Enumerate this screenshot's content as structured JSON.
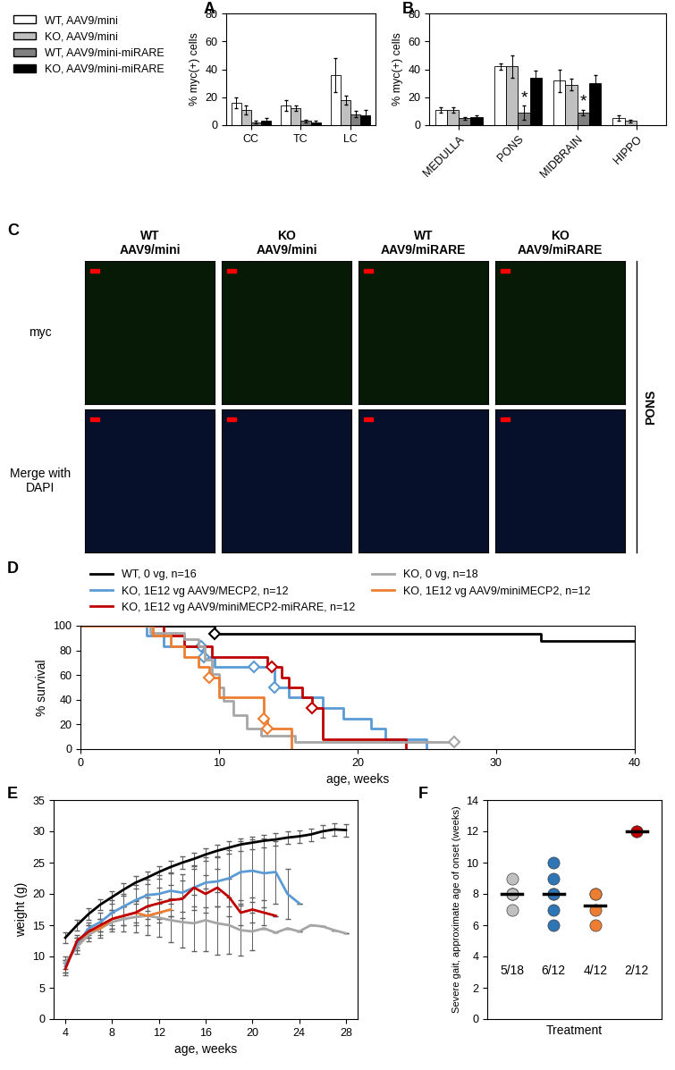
{
  "chart_data": [
    {
      "type": "bar",
      "title": "A",
      "ylabel": "% myc(+) cells",
      "legend": "upper left",
      "categories": [
        "CC",
        "TC",
        "LC"
      ],
      "ylim": [
        0,
        80
      ],
      "yticks": [
        0,
        20,
        40,
        60,
        80
      ],
      "series": [
        {
          "name": "WT, AAV9/mini",
          "color": "#ffffff",
          "values": [
            16,
            14,
            36
          ],
          "errors": [
            4,
            4,
            12
          ]
        },
        {
          "name": "KO, AAV9/mini",
          "color": "#c0c0c0",
          "values": [
            11,
            12,
            18
          ],
          "errors": [
            3,
            2,
            3
          ]
        },
        {
          "name": "WT, AAV9/mini-miRARE",
          "color": "#808080",
          "values": [
            2,
            3,
            8
          ],
          "errors": [
            1,
            1,
            2
          ]
        },
        {
          "name": "KO, AAV9/mini-miRARE",
          "color": "#000000",
          "values": [
            3,
            2,
            7
          ],
          "errors": [
            2,
            1,
            4
          ]
        }
      ]
    },
    {
      "type": "bar",
      "title": "B",
      "ylabel": "% myc(+) cells",
      "categories": [
        "MEDULLA",
        "PONS",
        "MIDBRAIN",
        "HIPPO"
      ],
      "ylim": [
        0,
        80
      ],
      "yticks": [
        0,
        20,
        40,
        60,
        80
      ],
      "series": [
        {
          "name": "WT, AAV9/mini",
          "color": "#ffffff",
          "values": [
            11,
            42,
            32,
            5
          ],
          "errors": [
            2,
            2,
            8,
            2
          ]
        },
        {
          "name": "KO, AAV9/mini",
          "color": "#c0c0c0",
          "values": [
            11,
            42,
            29,
            3
          ],
          "errors": [
            2,
            8,
            4,
            1
          ]
        },
        {
          "name": "WT, AAV9/mini-miRARE",
          "color": "#808080",
          "values": [
            5,
            9,
            9,
            null
          ],
          "errors": [
            1,
            5,
            2,
            null
          ]
        },
        {
          "name": "KO, AAV9/mini-miRARE",
          "color": "#000000",
          "values": [
            6,
            34,
            30,
            null
          ],
          "errors": [
            1,
            5,
            6,
            null
          ]
        }
      ],
      "annotations": [
        {
          "text": "*",
          "category": "PONS",
          "series": "WT, AAV9/mini-miRARE"
        },
        {
          "text": "*",
          "category": "MIDBRAIN",
          "series": "WT, AAV9/mini-miRARE"
        }
      ]
    },
    {
      "type": "image_grid",
      "title": "C",
      "columns": [
        "WT\nAAV9/mini",
        "KO\nAAV9/mini",
        "WT\nAAV9/miRARE",
        "KO\nAAV9/miRARE"
      ],
      "rows": [
        "myc",
        "Merge with DAPI"
      ],
      "region": "PONS"
    },
    {
      "type": "step",
      "title": "D",
      "ylabel": "% survival",
      "xlabel": "age, weeks",
      "legend": "upper left",
      "marker": "diamond",
      "xlim": [
        0,
        40
      ],
      "xticks": [
        0,
        10,
        20,
        30,
        40
      ],
      "ylim": [
        0,
        100
      ],
      "yticks": [
        0,
        20,
        40,
        60,
        80,
        100
      ],
      "series": [
        {
          "name": "WT, 0 vg, n=16",
          "color": "#000000",
          "x": [
            0,
            9.7,
            33.2,
            40
          ],
          "values": [
            100,
            93.75,
            87.5,
            87.5
          ],
          "censored": {
            "x": [
              9.7
            ],
            "values": [
              93.75
            ]
          }
        },
        {
          "name": "KO, 1E12 vg AAV9/MECP2, n=12",
          "color": "#5b9bd5",
          "x": [
            0,
            4.8,
            6,
            8.8,
            9.7,
            14,
            15,
            17.5,
            19,
            21,
            22,
            25
          ],
          "values": [
            100,
            91.7,
            83.3,
            75,
            66.7,
            50,
            41.7,
            33.3,
            25,
            16.7,
            8.3,
            0
          ],
          "censored": {
            "x": [
              8.7,
              8.9,
              12.5,
              14
            ],
            "values": [
              83.3,
              75,
              66.7,
              50
            ]
          }
        },
        {
          "name": "KO, 1E12 vg AAV9/miniMECP2-miRARE, n=12",
          "color": "#c00000",
          "x": [
            0,
            6,
            7.5,
            9.5,
            13.5,
            14.5,
            15,
            16,
            16.7,
            17.5,
            23.5
          ],
          "values": [
            100,
            91.7,
            83.3,
            75,
            66.7,
            58.3,
            50,
            41.7,
            33.3,
            8.3,
            0
          ],
          "censored": {
            "x": [
              13.8,
              16.7
            ],
            "values": [
              66.7,
              33.3
            ]
          }
        },
        {
          "name": "KO, 0 vg, n=18",
          "color": "#a6a6a6",
          "x": [
            0,
            5,
            7.5,
            8.5,
            9,
            9.5,
            10,
            10.3,
            11,
            12,
            13,
            15.5,
            27
          ],
          "values": [
            100,
            94.4,
            88.9,
            83.3,
            72.2,
            61.1,
            50,
            38.9,
            27.8,
            16.7,
            11.1,
            5.6,
            5.6
          ],
          "censored": {
            "x": [
              27
            ],
            "values": [
              5.6
            ]
          }
        },
        {
          "name": "KO, 1E12 vg AAV9/miniMECP2, n=12",
          "color": "#ed7d31",
          "x": [
            0,
            5.2,
            6.5,
            7.5,
            8.5,
            9.3,
            10,
            13.2,
            13.5,
            15.2
          ],
          "values": [
            100,
            91.7,
            83.3,
            75,
            66.7,
            58.3,
            41.7,
            25,
            16.7,
            0
          ],
          "censored": {
            "x": [
              9.3,
              13.2,
              13.5
            ],
            "values": [
              58.3,
              25,
              16.7
            ]
          }
        }
      ]
    },
    {
      "type": "line",
      "title": "E",
      "ylabel": "weight (g)",
      "xlabel": "age, weeks",
      "xlim": [
        3,
        29
      ],
      "xticks": [
        4,
        8,
        12,
        16,
        20,
        24,
        28
      ],
      "ylim": [
        0,
        35
      ],
      "yticks": [
        0,
        5,
        10,
        15,
        20,
        25,
        30,
        35
      ],
      "series": [
        {
          "color": "#a6a6a6",
          "x": [
            4,
            5,
            6,
            7,
            8,
            9,
            10,
            11,
            12,
            13,
            14,
            15,
            16,
            17,
            18,
            19,
            20,
            21,
            22,
            23,
            24,
            25,
            26,
            27,
            28
          ],
          "values": [
            9,
            11.5,
            13.5,
            14.5,
            15.5,
            16,
            16.3,
            16.5,
            16.2,
            15.8,
            15.5,
            15.3,
            15.8,
            15.3,
            15,
            14.2,
            14,
            14.5,
            13.8,
            14.5,
            14,
            15,
            14.8,
            14.2,
            13.7
          ],
          "errors": [
            1,
            1,
            1,
            1.5,
            1.5,
            2,
            2.5,
            3,
            3,
            3.5,
            4,
            4.5,
            5,
            5,
            4.5,
            4,
            3,
            0,
            0,
            0,
            0,
            0,
            0,
            0,
            0
          ]
        },
        {
          "color": "#ed7d31",
          "x": [
            4,
            5,
            6,
            7,
            8,
            9,
            10,
            11,
            12,
            13
          ],
          "values": [
            8.5,
            12,
            14,
            14.5,
            16,
            16.5,
            17,
            16.5,
            17,
            17.5
          ],
          "errors": [
            1,
            1,
            1,
            1,
            1.5,
            1.5,
            1.5,
            1.5,
            1.5,
            1
          ]
        },
        {
          "color": "#5b9bd5",
          "x": [
            4,
            5,
            6,
            7,
            8,
            9,
            10,
            11,
            12,
            13,
            14,
            15,
            16,
            17,
            18,
            19,
            20,
            21,
            22,
            23,
            24
          ],
          "values": [
            8.5,
            12,
            14.5,
            15.5,
            17,
            18,
            19,
            19.8,
            20,
            20.5,
            20.2,
            21,
            21.8,
            22,
            22.5,
            23.5,
            23.7,
            23.3,
            23.5,
            20,
            18.5
          ],
          "errors": [
            1,
            1,
            1,
            1.5,
            2,
            2,
            2.5,
            2.5,
            3,
            3,
            3,
            3.5,
            4,
            4,
            4.5,
            5,
            5,
            5.5,
            5,
            4,
            0
          ]
        },
        {
          "color": "#c00000",
          "x": [
            4,
            5,
            6,
            7,
            8,
            9,
            10,
            11,
            12,
            13,
            14,
            15,
            16,
            17,
            18,
            19,
            20,
            21,
            22
          ],
          "values": [
            8,
            12.5,
            14,
            15,
            16,
            16.5,
            17,
            18,
            18.5,
            19,
            19.2,
            21,
            20,
            21,
            19.5,
            17,
            17.5,
            17,
            16.5
          ],
          "errors": [
            1,
            1,
            1,
            1,
            1.5,
            1.5,
            2,
            2,
            2.5,
            2.5,
            3,
            3,
            3,
            3,
            3,
            2,
            2,
            2,
            0
          ]
        },
        {
          "color": "#000000",
          "x": [
            4,
            5,
            6,
            7,
            8,
            9,
            10,
            11,
            12,
            13,
            14,
            15,
            16,
            17,
            18,
            19,
            20,
            21,
            22,
            23,
            24,
            25,
            26,
            27,
            28
          ],
          "values": [
            13,
            15,
            16.8,
            18.3,
            19.5,
            20.7,
            21.8,
            22.6,
            23.5,
            24.3,
            25,
            25.6,
            26.3,
            26.9,
            27.4,
            27.9,
            28.2,
            28.5,
            28.7,
            29,
            29.2,
            29.5,
            30,
            30.3,
            30.2
          ],
          "errors": [
            0.8,
            0.9,
            0.9,
            0.9,
            1,
            1,
            1,
            1,
            1,
            1,
            1,
            1,
            1,
            1,
            1,
            1,
            1,
            1,
            1,
            1,
            1,
            1,
            1,
            1,
            1
          ]
        }
      ]
    },
    {
      "type": "scatter",
      "title": "F",
      "ylabel": "Severe gait, approximate age of onset (weeks)",
      "xlabel": "Treatment",
      "tick_labels": "y",
      "categories": [
        null,
        null,
        null,
        null
      ],
      "ylim": [
        0,
        14
      ],
      "yticks": [
        0,
        2,
        4,
        6,
        8,
        10,
        12,
        14
      ],
      "colors": [
        "#c0c0c0",
        "#2e75b6",
        "#ed7d31",
        "#c00000"
      ],
      "values": [
        [
          7,
          8,
          8,
          8,
          9
        ],
        [
          6,
          7,
          8,
          8,
          9,
          10
        ],
        [
          6,
          7,
          8,
          8
        ],
        [
          12,
          12
        ]
      ],
      "means": [
        8,
        8,
        7.25,
        12
      ],
      "annotations": [
        "5/18",
        "6/12",
        "4/12",
        "2/12"
      ]
    }
  ]
}
